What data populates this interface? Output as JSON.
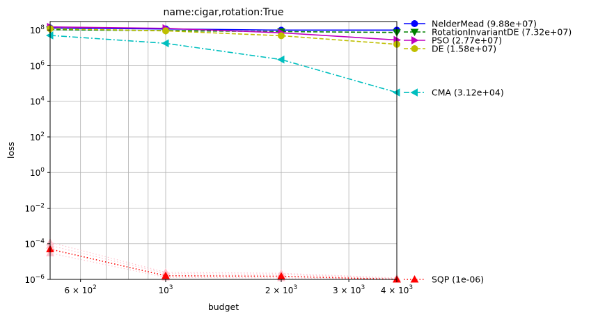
{
  "chart_data": {
    "type": "line",
    "title": "name:cigar,rotation:True",
    "xlabel": "budget",
    "ylabel": "loss",
    "xscale": "log",
    "yscale": "log",
    "xlim": [
      500,
      4000
    ],
    "ylim": [
      1e-06,
      300000000
    ],
    "grid": true,
    "legend_placement": "outside-right",
    "x_ticks": [
      {
        "value": 600,
        "base": "6 × 10",
        "exp": "2"
      },
      {
        "value": 1000,
        "base": "10",
        "exp": "3"
      },
      {
        "value": 2000,
        "base": "2 × 10",
        "exp": "3"
      },
      {
        "value": 3000,
        "base": "3 × 10",
        "exp": "3"
      },
      {
        "value": 4000,
        "base": "4 × 10",
        "exp": "3"
      }
    ],
    "x_minor_gridlines": [
      500,
      700,
      800,
      900
    ],
    "y_ticks": [
      {
        "value": 1e-06,
        "base": "10",
        "exp": "−6"
      },
      {
        "value": 0.0001,
        "base": "10",
        "exp": "−4"
      },
      {
        "value": 0.01,
        "base": "10",
        "exp": "−2"
      },
      {
        "value": 1,
        "base": "10",
        "exp": "0"
      },
      {
        "value": 100,
        "base": "10",
        "exp": "2"
      },
      {
        "value": 10000,
        "base": "10",
        "exp": "4"
      },
      {
        "value": 1000000,
        "base": "10",
        "exp": "6"
      },
      {
        "value": 100000000,
        "base": "10",
        "exp": "8"
      }
    ],
    "series": [
      {
        "name": "NelderMead (9.88e+07)",
        "color": "#0000ff",
        "dash": "solid",
        "marker": "circle",
        "x": [
          500,
          1000,
          2000,
          4000
        ],
        "y": [
          130000000,
          115000000,
          98800000,
          98800000
        ]
      },
      {
        "name": "RotationInvariantDE (7.32e+07)",
        "color": "#008000",
        "dash": "dashed",
        "marker": "triangle-down",
        "x": [
          500,
          1000,
          2000,
          4000
        ],
        "y": [
          105000000,
          92000000,
          82000000,
          73200000
        ]
      },
      {
        "name": "PSO (2.77e+07)",
        "color": "#bf00bf",
        "dash": "solid",
        "marker": "triangle-right",
        "x": [
          500,
          1000,
          2000,
          4000
        ],
        "y": [
          150000000,
          125000000,
          70000000,
          27700000
        ]
      },
      {
        "name": "DE (1.58e+07)",
        "color": "#bfbf00",
        "dash": "dashed",
        "marker": "circle",
        "x": [
          500,
          1000,
          2000,
          4000
        ],
        "y": [
          120000000,
          90000000,
          48000000,
          15800000
        ]
      },
      {
        "name": "CMA (3.12e+04)",
        "color": "#00bfbf",
        "dash": "dashdot",
        "marker": "triangle-left",
        "x": [
          500,
          1000,
          2000,
          4000
        ],
        "y": [
          50000000,
          18000000,
          2200000,
          31200
        ]
      },
      {
        "name": "SQP (1e-06)",
        "color": "#ff0000",
        "dash": "dotted",
        "marker": "triangle-up",
        "x": [
          500,
          1000,
          2000,
          4000
        ],
        "y": [
          5e-05,
          1.6e-06,
          1.5e-06,
          1e-06
        ]
      }
    ],
    "faint_runs": {
      "color": "#ffc0cb",
      "runs": [
        {
          "x": [
            500,
            1000,
            2000,
            4000
          ],
          "y": [
            0.00012,
            2.5e-06,
            2.2e-06,
            1.2e-06
          ]
        },
        {
          "x": [
            500,
            1000,
            2000,
            4000
          ],
          "y": [
            8e-05,
            2.1e-06,
            1.9e-06,
            1.1e-06
          ]
        },
        {
          "x": [
            500,
            1000,
            2000,
            4000
          ],
          "y": [
            3e-05,
            1.3e-06,
            1.2e-06,
            1e-06
          ]
        }
      ]
    }
  }
}
